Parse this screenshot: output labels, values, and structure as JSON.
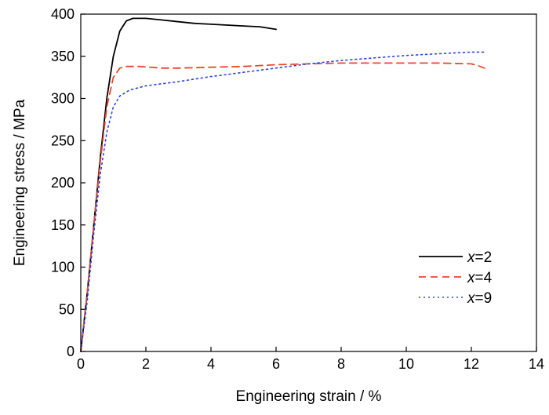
{
  "chart_data": {
    "type": "line",
    "title": "",
    "xlabel": "Engineering strain / %",
    "ylabel": "Engineering stress / MPa",
    "xlim": [
      0,
      14
    ],
    "ylim": [
      0,
      400
    ],
    "xticks": [
      0,
      2,
      4,
      6,
      8,
      10,
      12,
      14
    ],
    "yticks": [
      0,
      50,
      100,
      150,
      200,
      250,
      300,
      350,
      400
    ],
    "grid": false,
    "legend_position": "lower-right",
    "series": [
      {
        "name": "x=2",
        "label_var": "x",
        "label_rest": "=2",
        "color": "#000000",
        "dash": "solid",
        "points": [
          [
            0,
            0
          ],
          [
            0.2,
            70
          ],
          [
            0.4,
            150
          ],
          [
            0.6,
            230
          ],
          [
            0.8,
            300
          ],
          [
            1.0,
            350
          ],
          [
            1.2,
            380
          ],
          [
            1.4,
            392
          ],
          [
            1.6,
            395
          ],
          [
            1.8,
            395
          ],
          [
            2.0,
            395
          ],
          [
            2.5,
            393
          ],
          [
            3.0,
            391
          ],
          [
            3.5,
            389
          ],
          [
            4.0,
            388
          ],
          [
            4.5,
            387
          ],
          [
            5.0,
            386
          ],
          [
            5.5,
            385
          ],
          [
            6.0,
            382
          ]
        ]
      },
      {
        "name": "x=4",
        "label_var": "x",
        "label_rest": "=4",
        "color": "#e8482c",
        "dash": "dashed",
        "points": [
          [
            0,
            0
          ],
          [
            0.2,
            70
          ],
          [
            0.4,
            150
          ],
          [
            0.6,
            225
          ],
          [
            0.8,
            290
          ],
          [
            1.0,
            325
          ],
          [
            1.2,
            336
          ],
          [
            1.4,
            338
          ],
          [
            1.8,
            338
          ],
          [
            2.5,
            336
          ],
          [
            3.0,
            336
          ],
          [
            4.0,
            337
          ],
          [
            5.0,
            338
          ],
          [
            6.0,
            340
          ],
          [
            7.0,
            341
          ],
          [
            8.0,
            342
          ],
          [
            9.0,
            342
          ],
          [
            10.0,
            342
          ],
          [
            11.0,
            342
          ],
          [
            12.0,
            341
          ],
          [
            12.2,
            339
          ],
          [
            12.4,
            336
          ]
        ]
      },
      {
        "name": "x=9",
        "label_var": "x",
        "label_rest": "=9",
        "color": "#2c46d8",
        "dash": "dotted",
        "points": [
          [
            0,
            0
          ],
          [
            0.2,
            60
          ],
          [
            0.4,
            140
          ],
          [
            0.6,
            210
          ],
          [
            0.8,
            260
          ],
          [
            1.0,
            290
          ],
          [
            1.2,
            303
          ],
          [
            1.5,
            310
          ],
          [
            2.0,
            315
          ],
          [
            3.0,
            320
          ],
          [
            4.0,
            326
          ],
          [
            5.0,
            331
          ],
          [
            6.0,
            336
          ],
          [
            7.0,
            341
          ],
          [
            8.0,
            345
          ],
          [
            9.0,
            348
          ],
          [
            10.0,
            351
          ],
          [
            11.0,
            353
          ],
          [
            12.0,
            355
          ],
          [
            12.4,
            355
          ]
        ]
      }
    ]
  }
}
